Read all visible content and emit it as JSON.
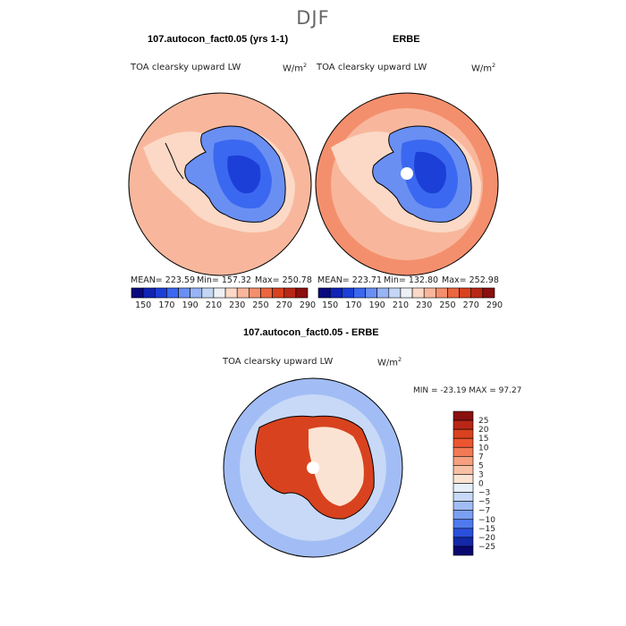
{
  "figure": {
    "title": "DJF"
  },
  "panels": [
    {
      "title": "107.autocon_fact0.05 (yrs 1-1)",
      "left_label": "TOA clearsky upward LW",
      "units": "W/m",
      "units_sup": "2",
      "stats": {
        "mean_label": "MEAN= 223.59",
        "min_label": "Min= 157.32",
        "max_label": "Max= 250.78"
      }
    },
    {
      "title": "ERBE",
      "left_label": "TOA clearsky upward LW",
      "units": "W/m",
      "units_sup": "2",
      "stats": {
        "mean_label": "MEAN= 223.71",
        "min_label": "Min= 132.80",
        "max_label": "Max= 252.98"
      }
    },
    {
      "title": "107.autocon_fact0.05 - ERBE",
      "left_label": "TOA clearsky upward LW",
      "units": "W/m",
      "units_sup": "2",
      "stats": {
        "minmax_label": "MIN = -23.19  MAX =  97.27"
      }
    }
  ],
  "chart_data": [
    {
      "type": "heatmap",
      "title": "107.autocon_fact0.05 (yrs 1-1)",
      "projection": "south-polar stereographic",
      "variable": "TOA clearsky upward LW",
      "units": "W/m2",
      "mean": 223.59,
      "min": 157.32,
      "max": 250.78,
      "colorbar": {
        "orientation": "horizontal",
        "ticks": [
          150,
          170,
          190,
          210,
          230,
          250,
          270,
          290
        ],
        "levels": [
          150,
          160,
          170,
          180,
          190,
          200,
          210,
          220,
          230,
          240,
          250,
          260,
          270,
          280,
          290
        ],
        "colors": [
          "#0a0a7e",
          "#1024b4",
          "#1c3fd8",
          "#3b68f0",
          "#6a8ff3",
          "#98b4f4",
          "#c4d6f4",
          "#edf1f6",
          "#fbd9c6",
          "#f8b79c",
          "#f48f6d",
          "#ec6640",
          "#d9421f",
          "#b82716",
          "#8a0f0f"
        ]
      }
    },
    {
      "type": "heatmap",
      "title": "ERBE",
      "projection": "south-polar stereographic",
      "variable": "TOA clearsky upward LW",
      "units": "W/m2",
      "mean": 223.71,
      "min": 132.8,
      "max": 252.98,
      "colorbar": {
        "orientation": "horizontal",
        "ticks": [
          150,
          170,
          190,
          210,
          230,
          250,
          270,
          290
        ],
        "levels": [
          150,
          160,
          170,
          180,
          190,
          200,
          210,
          220,
          230,
          240,
          250,
          260,
          270,
          280,
          290
        ],
        "colors": [
          "#0a0a7e",
          "#1024b4",
          "#1c3fd8",
          "#3b68f0",
          "#6a8ff3",
          "#98b4f4",
          "#c4d6f4",
          "#edf1f6",
          "#fbd9c6",
          "#f8b79c",
          "#f48f6d",
          "#ec6640",
          "#d9421f",
          "#b82716",
          "#8a0f0f"
        ]
      }
    },
    {
      "type": "heatmap",
      "title": "107.autocon_fact0.05 - ERBE",
      "projection": "south-polar stereographic",
      "variable": "TOA clearsky upward LW",
      "units": "W/m2",
      "min": -23.19,
      "max": 97.27,
      "colorbar": {
        "orientation": "vertical",
        "ticks": [
          "25",
          "20",
          "15",
          "10",
          "7",
          "5",
          "3",
          "0",
          "−3",
          "−5",
          "−7",
          "−10",
          "−15",
          "−20",
          "−25"
        ],
        "colors": [
          "#8a0f0f",
          "#b82716",
          "#d9421f",
          "#ec5530",
          "#f27a55",
          "#f6a07f",
          "#f8c0a4",
          "#fbe3d3",
          "#e6effa",
          "#c7d9f7",
          "#a2bdf5",
          "#7b9ff3",
          "#4f7aee",
          "#2a4fdc",
          "#1428a8",
          "#08086e"
        ]
      }
    }
  ]
}
